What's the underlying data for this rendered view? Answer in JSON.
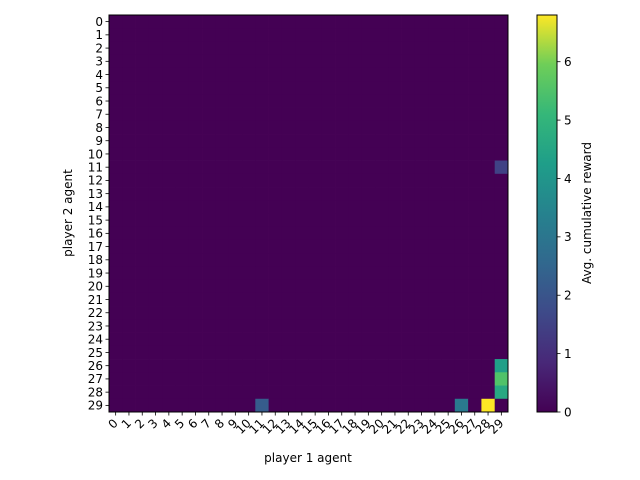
{
  "chart_data": {
    "type": "heatmap",
    "title": "",
    "xlabel": "player 1 agent",
    "ylabel": "player 2 agent",
    "x_ticks": [
      0,
      1,
      2,
      3,
      4,
      5,
      6,
      7,
      8,
      9,
      10,
      11,
      12,
      13,
      14,
      15,
      16,
      17,
      18,
      19,
      20,
      21,
      22,
      23,
      24,
      25,
      26,
      27,
      28,
      29
    ],
    "y_ticks": [
      0,
      1,
      2,
      3,
      4,
      5,
      6,
      7,
      8,
      9,
      10,
      11,
      12,
      13,
      14,
      15,
      16,
      17,
      18,
      19,
      20,
      21,
      22,
      23,
      24,
      25,
      26,
      27,
      28,
      29
    ],
    "grid": false,
    "colormap": "viridis",
    "colorbar": {
      "label": "Avg. cumulative reward",
      "range": [
        0,
        6.8
      ],
      "ticks": [
        0,
        1,
        2,
        3,
        4,
        5,
        6
      ]
    },
    "default_value": 0,
    "nonzero_cells": [
      {
        "x": 29,
        "y": 11,
        "value": 1.5
      },
      {
        "x": 29,
        "y": 26,
        "value": 4.3
      },
      {
        "x": 29,
        "y": 27,
        "value": 5.5
      },
      {
        "x": 29,
        "y": 28,
        "value": 4.6
      },
      {
        "x": 11,
        "y": 29,
        "value": 2.2
      },
      {
        "x": 26,
        "y": 29,
        "value": 3.1
      },
      {
        "x": 28,
        "y": 29,
        "value": 6.8
      }
    ]
  }
}
